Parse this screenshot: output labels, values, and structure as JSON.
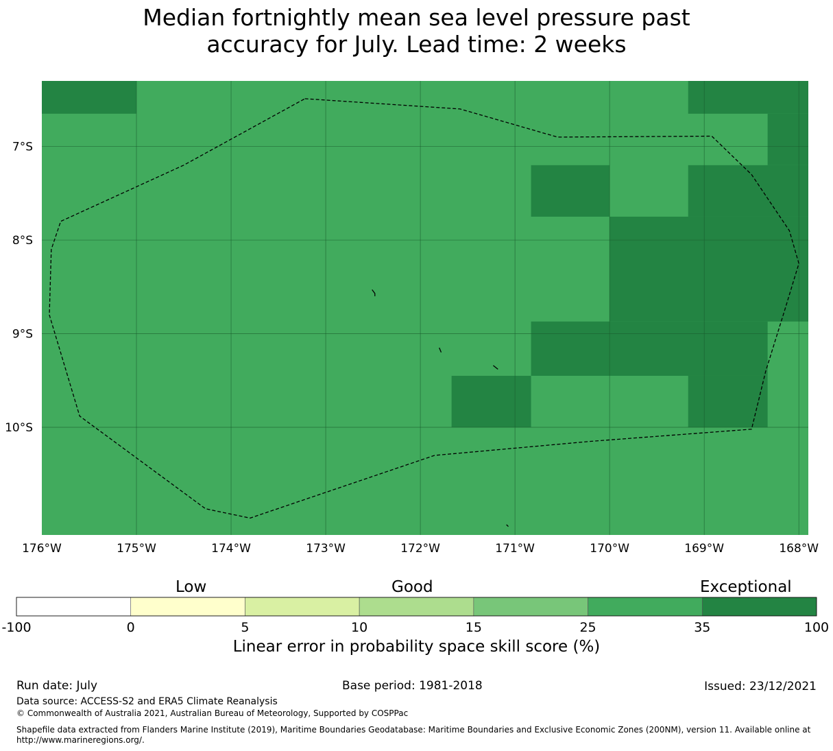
{
  "title": {
    "line1": "Median fortnightly mean sea level pressure past",
    "line2": "accuracy for July. Lead time: 2 weeks"
  },
  "map": {
    "lon_range": [
      -176,
      -167.9
    ],
    "lat_range": [
      -11.15,
      -6.3
    ],
    "lon_ticks": [
      "176°W",
      "175°W",
      "174°W",
      "173°W",
      "172°W",
      "171°W",
      "170°W",
      "169°W",
      "168°W"
    ],
    "lat_ticks": [
      "7°S",
      "8°S",
      "9°S",
      "10°S"
    ],
    "colors": {
      "base": "#41ab5d",
      "exceptional": "#238443"
    },
    "exceptional_cells": [
      {
        "lon": [
          -176.0,
          -175.0
        ],
        "lat": [
          -6.65,
          -6.3
        ]
      },
      {
        "lon": [
          -169.17,
          -167.9
        ],
        "lat": [
          -6.65,
          -6.3
        ]
      },
      {
        "lon": [
          -168.33,
          -167.9
        ],
        "lat": [
          -7.2,
          -6.65
        ]
      },
      {
        "lon": [
          -170.83,
          -170.0
        ],
        "lat": [
          -7.75,
          -7.2
        ]
      },
      {
        "lon": [
          -169.17,
          -167.9
        ],
        "lat": [
          -7.75,
          -7.2
        ]
      },
      {
        "lon": [
          -170.0,
          -167.9
        ],
        "lat": [
          -8.87,
          -7.75
        ]
      },
      {
        "lon": [
          -170.83,
          -168.33
        ],
        "lat": [
          -9.45,
          -8.87
        ]
      },
      {
        "lon": [
          -171.67,
          -170.83
        ],
        "lat": [
          -10.0,
          -9.45
        ]
      },
      {
        "lon": [
          -169.17,
          -168.33
        ],
        "lat": [
          -10.0,
          -9.45
        ]
      }
    ],
    "eez_boundary": [
      [
        -173.22,
        -6.49
      ],
      [
        -171.58,
        -6.6
      ],
      [
        -170.55,
        -6.9
      ],
      [
        -168.92,
        -6.89
      ],
      [
        -168.5,
        -7.3
      ],
      [
        -168.1,
        -7.9
      ],
      [
        -168.0,
        -8.25
      ],
      [
        -168.15,
        -8.75
      ],
      [
        -168.35,
        -9.4
      ],
      [
        -168.5,
        -10.02
      ],
      [
        -170.2,
        -10.15
      ],
      [
        -171.85,
        -10.3
      ],
      [
        -173.8,
        -10.97
      ],
      [
        -174.27,
        -10.87
      ],
      [
        -175.6,
        -9.88
      ],
      [
        -175.92,
        -8.8
      ],
      [
        -175.9,
        -8.1
      ],
      [
        -175.8,
        -7.8
      ],
      [
        -174.5,
        -7.2
      ],
      [
        -173.22,
        -6.49
      ]
    ],
    "islands": [
      [
        [
          -172.51,
          -8.53
        ],
        [
          -172.48,
          -8.57
        ],
        [
          -172.48,
          -8.6
        ]
      ],
      [
        [
          -171.8,
          -9.15
        ],
        [
          -171.78,
          -9.2
        ]
      ],
      [
        [
          -171.23,
          -9.34
        ],
        [
          -171.18,
          -9.38
        ]
      ],
      [
        [
          -171.09,
          -11.04
        ],
        [
          -171.07,
          -11.06
        ]
      ]
    ]
  },
  "colorbar": {
    "categories": [
      {
        "label": "Low",
        "position": "center-of-0-to-10"
      },
      {
        "label": "Good",
        "position": "center-of-10-to-15"
      },
      {
        "label": "Exceptional",
        "position": "right"
      }
    ],
    "segments": [
      {
        "from": "-100",
        "to": "0",
        "color": "#ffffff"
      },
      {
        "from": "0",
        "to": "5",
        "color": "#ffffcc"
      },
      {
        "from": "5",
        "to": "10",
        "color": "#d9f0a3"
      },
      {
        "from": "10",
        "to": "15",
        "color": "#addd8e"
      },
      {
        "from": "15",
        "to": "25",
        "color": "#78c679"
      },
      {
        "from": "25",
        "to": "35",
        "color": "#41ab5d"
      },
      {
        "from": "35",
        "to": "100",
        "color": "#238443"
      }
    ],
    "tick_labels": [
      "-100",
      "0",
      "5",
      "10",
      "15",
      "25",
      "35",
      "100"
    ],
    "title": "Linear error in probability space skill score (%)"
  },
  "footer": {
    "run_date": "Run date: July",
    "base_period": "Base period: 1981-2018",
    "issued": "Issued: 23/12/2021",
    "data_source": "Data source: ACCESS-S2 and ERA5 Climate Reanalysis",
    "copyright": "© Commonwealth of Australia 2021, Australian Bureau of Meteorology, Supported by COSPPac",
    "shapefile_line1": "Shapefile data extracted from Flanders Marine Institute (2019), Maritime Boundaries Geodatabase: Maritime Boundaries and Exclusive Economic Zones (200NM), version 11. Available online at",
    "shapefile_line2": "http://www.marineregions.org/."
  }
}
